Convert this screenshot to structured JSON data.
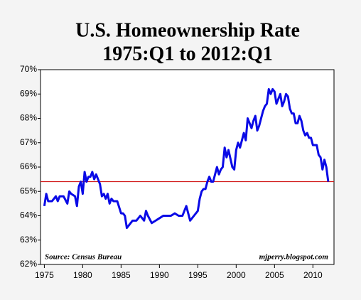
{
  "chart_data": {
    "type": "line",
    "title": "U.S. Homeownership Rate",
    "subtitle": "1975:Q1 to 2012:Q1",
    "annotations": [
      "Source: Census Bureau",
      "mjperry.blogspot.com"
    ],
    "color": "#0a0ae6",
    "reference_line": {
      "value": 65.4,
      "color": "#d01010"
    },
    "xlim": [
      1974.5,
      2012.75
    ],
    "xticks": [
      1975,
      1980,
      1985,
      1990,
      1995,
      2000,
      2005,
      2010
    ],
    "ylim": [
      62,
      70
    ],
    "yticks": [
      {
        "value": 62,
        "label": "62%"
      },
      {
        "value": 63,
        "label": "63%"
      },
      {
        "value": 64,
        "label": "64%"
      },
      {
        "value": 65,
        "label": "65%"
      },
      {
        "value": 66,
        "label": "66%"
      },
      {
        "value": 67,
        "label": "67%"
      },
      {
        "value": 68,
        "label": "68%"
      },
      {
        "value": 69,
        "label": "69%"
      },
      {
        "value": 70,
        "label": "70%"
      }
    ],
    "x": [
      1975,
      1975.25,
      1975.5,
      1975.75,
      1976,
      1976.25,
      1976.5,
      1976.75,
      1977,
      1977.5,
      1978,
      1978.25,
      1978.5,
      1979,
      1979.25,
      1979.5,
      1979.75,
      1980,
      1980.25,
      1980.5,
      1980.75,
      1981,
      1981.25,
      1981.5,
      1981.75,
      1982,
      1982.25,
      1982.5,
      1982.75,
      1983,
      1983.25,
      1983.5,
      1983.75,
      1984,
      1984.5,
      1985,
      1985.25,
      1985.5,
      1985.75,
      1986,
      1986.5,
      1987,
      1987.5,
      1988,
      1988.25,
      1988.5,
      1989,
      1989.5,
      1990,
      1990.5,
      1991,
      1991.5,
      1992,
      1992.5,
      1993,
      1993.5,
      1994,
      1994.5,
      1995,
      1995.25,
      1995.5,
      1995.75,
      1996,
      1996.25,
      1996.5,
      1996.75,
      1997,
      1997.25,
      1997.5,
      1997.75,
      1998,
      1998.25,
      1998.5,
      1998.75,
      1999,
      1999.5,
      1999.75,
      2000,
      2000.25,
      2000.5,
      2000.75,
      2001,
      2001.25,
      2001.5,
      2001.75,
      2002,
      2002.25,
      2002.5,
      2002.75,
      2003,
      2003.25,
      2003.5,
      2003.75,
      2004,
      2004.25,
      2004.5,
      2004.75,
      2005,
      2005.25,
      2005.5,
      2005.75,
      2006,
      2006.25,
      2006.5,
      2006.75,
      2007,
      2007.25,
      2007.5,
      2007.75,
      2008,
      2008.25,
      2008.5,
      2008.75,
      2009,
      2009.25,
      2009.5,
      2009.75,
      2010,
      2010.25,
      2010.5,
      2010.75,
      2011,
      2011.25,
      2011.5,
      2011.75,
      2012
    ],
    "values": [
      64.4,
      64.9,
      64.6,
      64.6,
      64.6,
      64.7,
      64.8,
      64.6,
      64.8,
      64.8,
      64.5,
      65.0,
      64.9,
      64.8,
      64.4,
      65.2,
      65.4,
      64.9,
      65.8,
      65.4,
      65.6,
      65.6,
      65.8,
      65.5,
      65.7,
      65.5,
      65.3,
      64.8,
      64.9,
      64.7,
      64.9,
      64.5,
      64.7,
      64.6,
      64.6,
      64.1,
      64.1,
      64.0,
      63.5,
      63.6,
      63.8,
      63.8,
      64.0,
      63.8,
      64.2,
      64.0,
      63.7,
      63.8,
      63.9,
      64.0,
      64.0,
      64.0,
      64.1,
      64.0,
      64.0,
      64.4,
      63.8,
      64.0,
      64.2,
      64.7,
      65.0,
      65.1,
      65.1,
      65.4,
      65.6,
      65.4,
      65.4,
      65.7,
      66.0,
      65.7,
      65.9,
      66.0,
      66.8,
      66.4,
      66.7,
      66.0,
      65.9,
      66.7,
      67.0,
      66.8,
      67.1,
      67.4,
      67.1,
      68.0,
      67.8,
      67.6,
      67.9,
      68.1,
      67.5,
      67.7,
      68.0,
      68.3,
      68.5,
      68.6,
      69.2,
      69.0,
      69.2,
      69.1,
      68.6,
      68.8,
      69.0,
      68.5,
      68.7,
      69.0,
      68.9,
      68.4,
      68.2,
      68.2,
      67.8,
      67.8,
      68.1,
      67.9,
      67.5,
      67.3,
      67.4,
      67.2,
      67.2,
      66.9,
      66.9,
      66.9,
      66.5,
      66.4,
      65.9,
      66.3,
      66.0,
      65.4
    ]
  }
}
